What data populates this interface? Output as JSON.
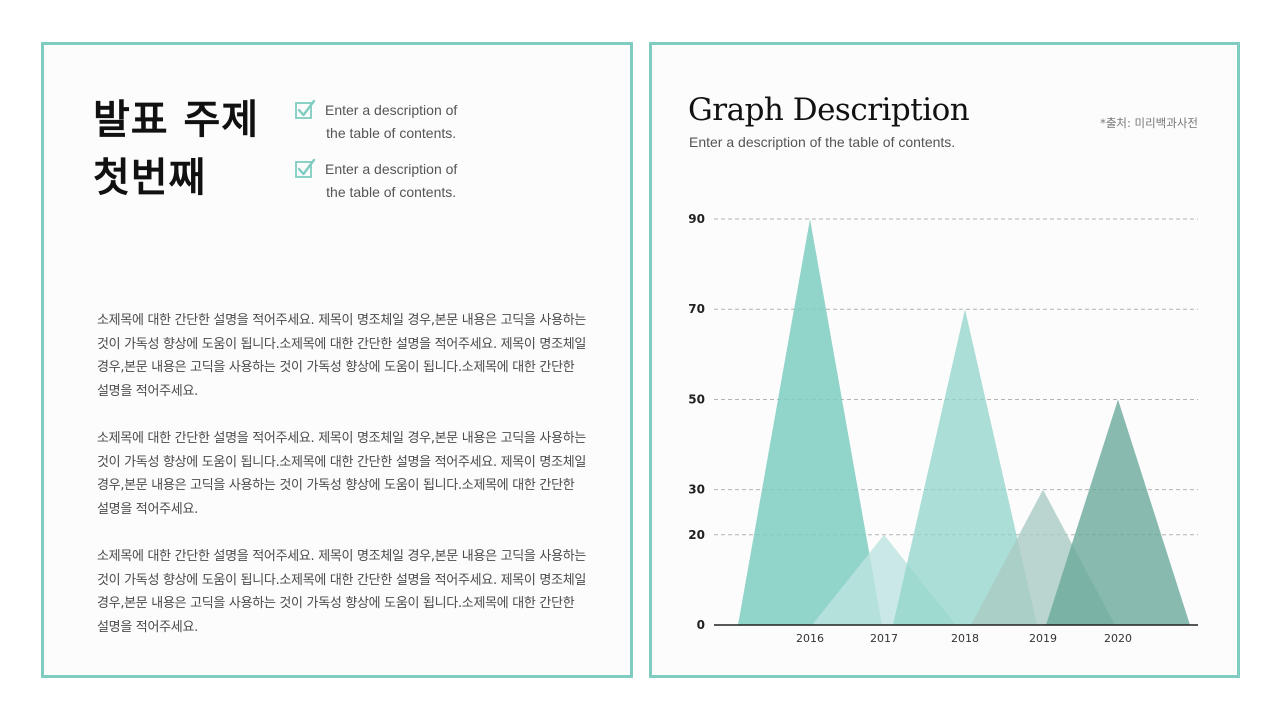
{
  "left_panel": {
    "title_lines": [
      "발표 주제",
      "첫번째"
    ],
    "checklist": [
      {
        "icon": "checkbox-checked-icon",
        "text": "Enter a description of\nthe table of contents."
      },
      {
        "icon": "checkbox-checked-icon",
        "text": "Enter a description of\nthe table of contents."
      }
    ],
    "paragraphs": [
      "소제목에 대한 간단한 설명을 적어주세요. 제목이 명조체일 경우,본문 내용은 고딕을 사용하는 것이 가독성 향상에 도움이 됩니다.소제목에 대한 간단한 설명을 적어주세요. 제목이 명조체일 경우,본문 내용은 고딕을 사용하는 것이 가독성 향상에 도움이 됩니다.소제목에 대한 간단한 설명을 적어주세요.",
      "소제목에 대한 간단한 설명을 적어주세요. 제목이 명조체일 경우,본문 내용은 고딕을 사용하는 것이 가독성 향상에 도움이 됩니다.소제목에 대한 간단한 설명을 적어주세요. 제목이 명조체일 경우,본문 내용은 고딕을 사용하는 것이 가독성 향상에 도움이 됩니다.소제목에 대한 간단한 설명을 적어주세요.",
      "소제목에 대한 간단한 설명을 적어주세요. 제목이 명조체일 경우,본문 내용은 고딕을 사용하는 것이 가독성 향상에 도움이 됩니다.소제목에 대한 간단한 설명을 적어주세요. 제목이 명조체일 경우,본문 내용은 고딕을 사용하는 것이 가독성 향상에 도움이 됩니다.소제목에 대한 간단한 설명을 적어주세요."
    ]
  },
  "right_panel": {
    "title": "Graph Description",
    "subtitle": "Enter a description of the table of contents.",
    "source_note": "*출처: 미리백과사전"
  },
  "colors": {
    "accent": "#7ecdc0",
    "grid": "#b4b4b4",
    "axis": "#222222"
  },
  "chart_data": {
    "type": "area",
    "shape": "triangle",
    "categories": [
      "2016",
      "2017",
      "2018",
      "2019",
      "2020"
    ],
    "values": [
      90,
      20,
      70,
      30,
      50
    ],
    "series_colors": [
      "#7ecdc0",
      "#bde4e0",
      "#8fd4c8",
      "#a9cac3",
      "#6aa99b"
    ],
    "series_opacity": [
      0.85,
      0.8,
      0.75,
      0.8,
      0.8
    ],
    "y_ticks": [
      0,
      20,
      30,
      50,
      70,
      90
    ],
    "y_grid": [
      20,
      30,
      50,
      70,
      90
    ],
    "ylim": [
      0,
      90
    ],
    "grid": true,
    "grid_style": "dashed",
    "title": "Graph Description",
    "xlabel": "",
    "ylabel": ""
  }
}
